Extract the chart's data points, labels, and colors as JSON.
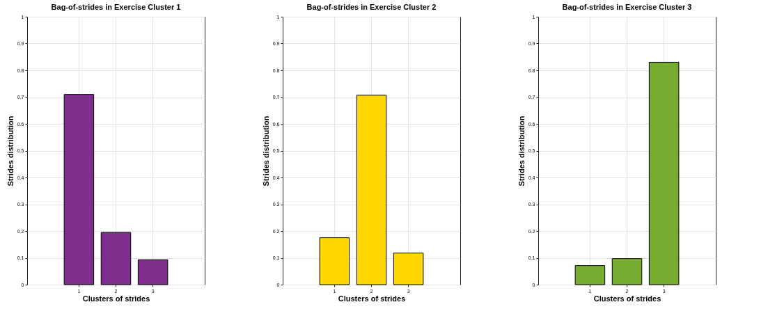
{
  "chart_data": [
    {
      "type": "bar",
      "title": "Bag-of-strides in Exercise Cluster 1",
      "xlabel": "Clusters of strides",
      "ylabel": "Strides distribution",
      "categories": [
        "1",
        "2",
        "3"
      ],
      "values": [
        0.71,
        0.195,
        0.093
      ],
      "color": "#7e2f8e",
      "ylim": [
        0,
        1
      ],
      "yticks": [
        0,
        0.1,
        0.2,
        0.3,
        0.4,
        0.5,
        0.6,
        0.7,
        0.8,
        0.9,
        1
      ],
      "grid": true
    },
    {
      "type": "bar",
      "title": "Bag-of-strides in Exercise Cluster 2",
      "xlabel": "Clusters of strides",
      "ylabel": "Strides distribution",
      "categories": [
        "1",
        "2",
        "3"
      ],
      "values": [
        0.175,
        0.707,
        0.118
      ],
      "color": "#ffd700",
      "ylim": [
        0,
        1
      ],
      "yticks": [
        0,
        0.1,
        0.2,
        0.3,
        0.4,
        0.5,
        0.6,
        0.7,
        0.8,
        0.9,
        1
      ],
      "grid": true
    },
    {
      "type": "bar",
      "title": "Bag-of-strides in Exercise Cluster 3",
      "xlabel": "Clusters of strides",
      "ylabel": "Strides distribution",
      "categories": [
        "1",
        "2",
        "3"
      ],
      "values": [
        0.071,
        0.097,
        0.83
      ],
      "color": "#77ac30",
      "ylim": [
        0,
        1
      ],
      "yticks": [
        0,
        0.1,
        0.2,
        0.3,
        0.4,
        0.5,
        0.6,
        0.7,
        0.8,
        0.9,
        1
      ],
      "grid": true
    }
  ]
}
